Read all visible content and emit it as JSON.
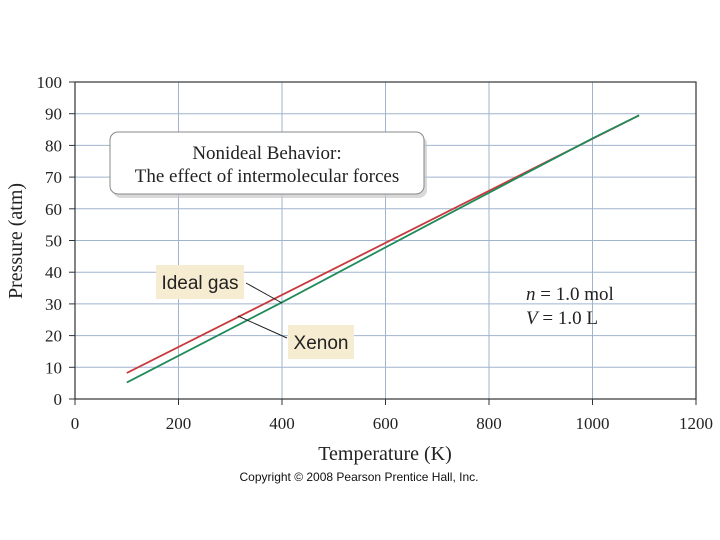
{
  "chart_data": {
    "type": "line",
    "title": "Nonideal Behavior:",
    "subtitle": "The effect of intermolecular forces",
    "xlabel": "Temperature (K)",
    "ylabel": "Pressure (atm)",
    "xlim": [
      0,
      1200
    ],
    "ylim": [
      0,
      100
    ],
    "xticks": [
      0,
      200,
      400,
      600,
      800,
      1000,
      1200
    ],
    "yticks": [
      0,
      10,
      20,
      30,
      40,
      50,
      60,
      70,
      80,
      90,
      100
    ],
    "grid": true,
    "series": [
      {
        "name": "Ideal gas",
        "color": "#c8393b",
        "x": [
          100,
          1090
        ],
        "y": [
          8.2,
          89.5
        ]
      },
      {
        "name": "Xenon",
        "color": "#1f8a5b",
        "x": [
          100,
          400,
          700,
          1000,
          1090
        ],
        "y": [
          5.2,
          30.5,
          56.5,
          82.2,
          89.5
        ]
      }
    ],
    "annotations": {
      "conditions": [
        {
          "symbol": "n",
          "text": " = 1.0 mol"
        },
        {
          "symbol": "V",
          "text": " = 1.0 L"
        }
      ]
    }
  },
  "copyright": "Copyright © 2008 Pearson Prentice Hall, Inc.",
  "colors": {
    "grid": "#9fb4cf",
    "frame": "#333333",
    "tag_bg": "#f6ecd2",
    "callout_border": "#888888"
  }
}
